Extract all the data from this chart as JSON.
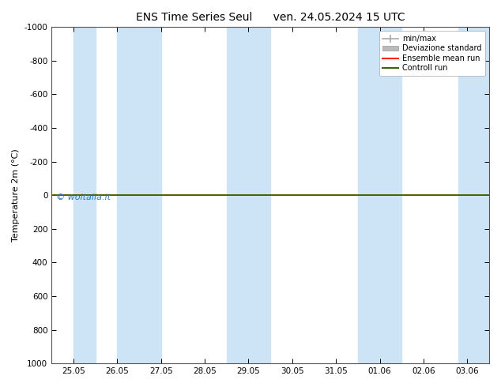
{
  "title": "ENS Time Series Seul      ven. 24.05.2024 15 UTC",
  "ylabel": "Temperature 2m (°C)",
  "ylim_bottom": 1000,
  "ylim_top": -1000,
  "yticks": [
    -1000,
    -800,
    -600,
    -400,
    -200,
    0,
    200,
    400,
    600,
    800,
    1000
  ],
  "xtick_labels": [
    "25.05",
    "26.05",
    "27.05",
    "28.05",
    "29.05",
    "30.05",
    "31.05",
    "01.06",
    "02.06",
    "03.06"
  ],
  "xtick_positions": [
    0,
    1,
    2,
    3,
    4,
    5,
    6,
    7,
    8,
    9
  ],
  "xlim": [
    -0.5,
    9.5
  ],
  "background_color": "#ffffff",
  "plot_bg_color": "#ffffff",
  "band_color": "#cce4f5",
  "bands": [
    [
      0.0,
      0.5
    ],
    [
      1.0,
      2.0
    ],
    [
      3.5,
      4.5
    ],
    [
      6.5,
      7.5
    ],
    [
      8.8,
      9.5
    ]
  ],
  "line_y": 0,
  "ensemble_mean_color": "#ff2200",
  "control_run_color": "#336600",
  "line_width": 1.2,
  "watermark": "© woitalia.it",
  "watermark_color": "#3377bb",
  "legend_entries": [
    "min/max",
    "Deviazione standard",
    "Ensemble mean run",
    "Controll run"
  ],
  "minmax_color": "#aaaaaa",
  "devstd_color": "#bbbbbb",
  "tick_fontsize": 7.5,
  "label_fontsize": 8,
  "title_fontsize": 10
}
